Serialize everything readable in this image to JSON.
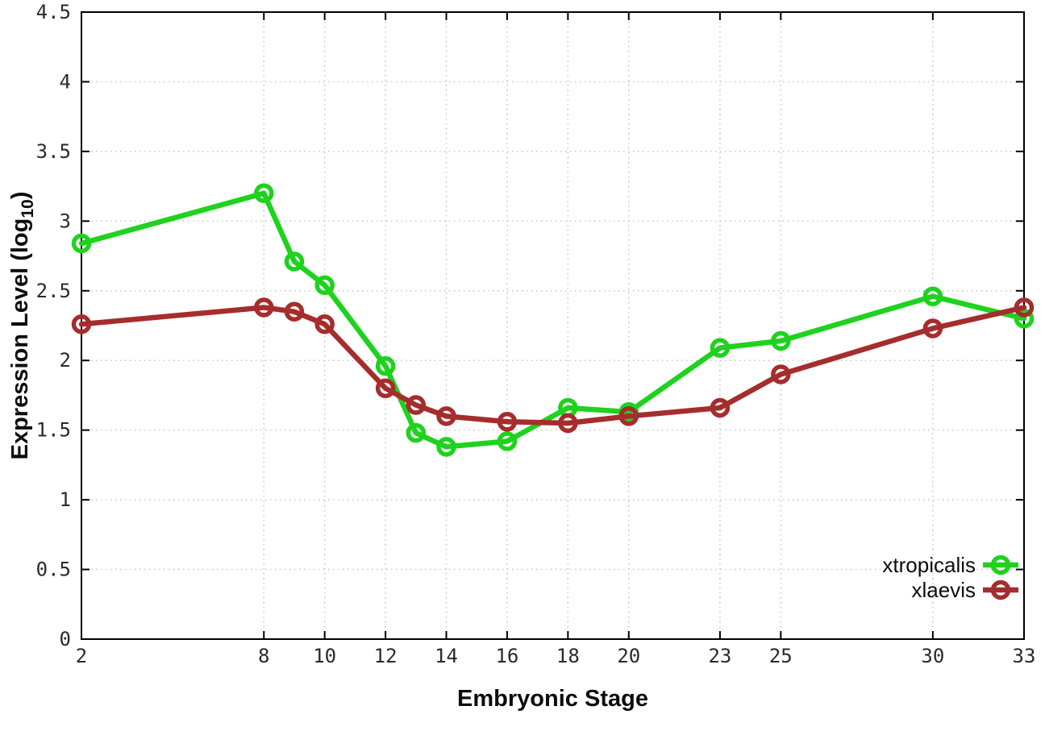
{
  "chart_data": {
    "type": "line",
    "title": "",
    "xlabel": "Embryonic Stage",
    "ylabel": "Expression Level (log10)",
    "ylabel_parts": {
      "pre": "Expression Level (log",
      "sub": "10",
      "post": ")"
    },
    "xlim": [
      2,
      33
    ],
    "ylim": [
      0,
      4.5
    ],
    "grid": true,
    "legend_position": "bottom-right",
    "x": [
      2,
      8,
      9,
      10,
      12,
      13,
      14,
      16,
      18,
      20,
      23,
      25,
      30,
      33
    ],
    "xtick_values": [
      2,
      8,
      10,
      12,
      14,
      16,
      18,
      20,
      23,
      25,
      30,
      33
    ],
    "xtick_labels": [
      "2",
      "8",
      "10",
      "12",
      "14",
      "16",
      "18",
      "20",
      "23",
      "25",
      "30",
      "33"
    ],
    "ytick_values": [
      0,
      0.5,
      1,
      1.5,
      2,
      2.5,
      3,
      3.5,
      4,
      4.5
    ],
    "ytick_labels": [
      "0",
      "0.5",
      "1",
      "1.5",
      "2",
      "2.5",
      "3",
      "3.5",
      "4",
      "4.5"
    ],
    "series": [
      {
        "name": "xtropicalis",
        "color": "#1ed21e",
        "values": [
          2.84,
          3.2,
          2.71,
          2.54,
          1.96,
          1.48,
          1.38,
          1.42,
          1.66,
          1.63,
          2.09,
          2.14,
          2.46,
          2.3
        ]
      },
      {
        "name": "xlaevis",
        "color": "#a52d2d",
        "values": [
          2.26,
          2.38,
          2.35,
          2.26,
          1.8,
          1.68,
          1.6,
          1.56,
          1.55,
          1.6,
          1.66,
          1.9,
          2.23,
          2.38
        ]
      }
    ],
    "colors": {
      "grid": "#c4c4c4",
      "axis": "#000000",
      "tick_text": "#2a2a2a",
      "label_text": "#0d0d0d",
      "background": "#ffffff"
    }
  }
}
